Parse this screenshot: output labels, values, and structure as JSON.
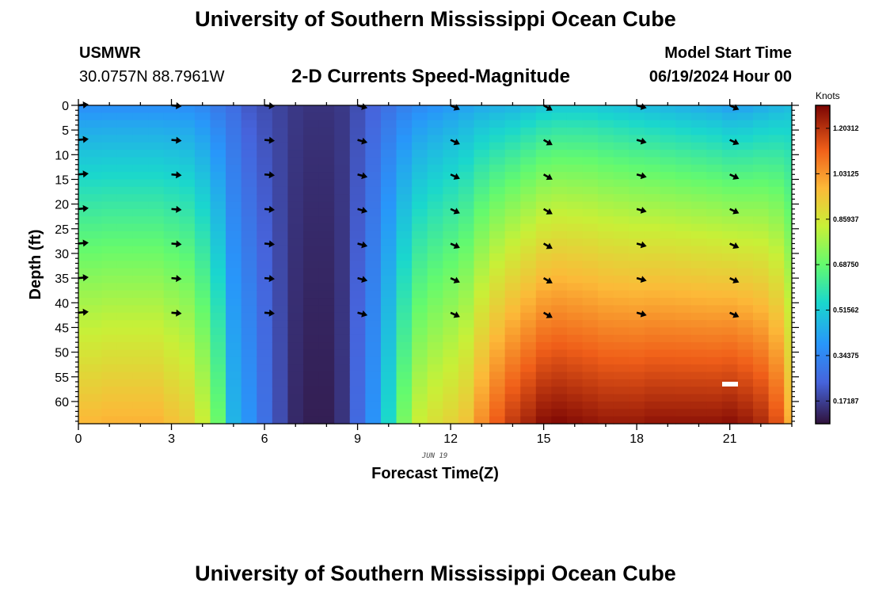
{
  "page_title": "University of Southern Mississippi Ocean Cube",
  "station": {
    "id": "USMWR",
    "coords": "30.0757N  88.7961W"
  },
  "plot_title": "2-D Currents Speed-Magnitude",
  "model_start": {
    "label": "Model Start Time",
    "value": "06/19/2024 Hour 00"
  },
  "date_annotation": "JUN 19",
  "footer_title": "University of Southern Mississippi Ocean Cube",
  "chart_data": {
    "type": "heatmap",
    "title": "2-D Currents Speed-Magnitude",
    "xlabel": "Forecast Time(Z)",
    "ylabel": "Depth (ft)",
    "xlim": [
      0,
      23
    ],
    "ylim": [
      0,
      64.5
    ],
    "y_inverted": true,
    "x_ticks": [
      0,
      3,
      6,
      9,
      12,
      15,
      18,
      21
    ],
    "y_ticks": [
      0,
      5,
      10,
      15,
      20,
      25,
      30,
      35,
      40,
      45,
      50,
      55,
      60
    ],
    "colorbar": {
      "label": "Knots",
      "min": 0.0859375,
      "max": 1.29,
      "ticks": [
        0.171875,
        0.34375,
        0.515625,
        0.6875,
        0.859375,
        1.03125,
        1.203125
      ],
      "tick_labels": [
        "0.17187",
        "0.34375",
        "0.51562",
        "0.68750",
        "0.85937",
        "1.03125",
        "1.20312"
      ]
    },
    "hours": [
      0,
      0.5,
      1,
      1.5,
      2,
      2.5,
      3,
      3.5,
      4,
      4.5,
      5,
      5.5,
      6,
      6.5,
      7,
      7.5,
      8,
      8.5,
      9,
      9.5,
      10,
      10.5,
      11,
      11.5,
      12,
      12.5,
      13,
      13.5,
      14,
      14.5,
      15,
      15.5,
      16,
      16.5,
      17,
      17.5,
      18,
      18.5,
      19,
      19.5,
      20,
      20.5,
      21,
      21.5,
      22,
      22.5,
      23
    ],
    "speed_surface_knots": [
      0.36,
      0.36,
      0.36,
      0.36,
      0.36,
      0.36,
      0.36,
      0.36,
      0.34,
      0.3,
      0.27,
      0.22,
      0.2,
      0.18,
      0.16,
      0.15,
      0.15,
      0.16,
      0.2,
      0.24,
      0.28,
      0.32,
      0.35,
      0.37,
      0.39,
      0.41,
      0.43,
      0.44,
      0.45,
      0.47,
      0.49,
      0.5,
      0.5,
      0.5,
      0.49,
      0.48,
      0.47,
      0.46,
      0.45,
      0.44,
      0.43,
      0.42,
      0.4,
      0.41,
      0.43,
      0.45,
      0.47
    ],
    "speed_bottom_knots": [
      0.98,
      0.98,
      0.99,
      0.99,
      0.99,
      0.99,
      0.96,
      0.93,
      0.84,
      0.7,
      0.46,
      0.38,
      0.28,
      0.2,
      0.13,
      0.11,
      0.11,
      0.15,
      0.26,
      0.38,
      0.55,
      0.72,
      0.84,
      0.88,
      0.91,
      0.95,
      1.05,
      1.13,
      1.19,
      1.23,
      1.27,
      1.28,
      1.27,
      1.26,
      1.25,
      1.25,
      1.25,
      1.26,
      1.26,
      1.26,
      1.26,
      1.26,
      1.27,
      1.25,
      1.22,
      1.15,
      1.0
    ],
    "vector_hours": [
      0,
      3,
      6,
      9,
      12,
      15,
      18,
      21
    ],
    "vector_depths_ft": [
      0,
      7,
      14,
      21,
      28,
      35,
      42
    ],
    "vector_directions_deg_cw_from_east": [
      -5,
      5,
      5,
      15,
      25,
      30,
      15,
      25
    ],
    "legend": "colorbar right"
  }
}
